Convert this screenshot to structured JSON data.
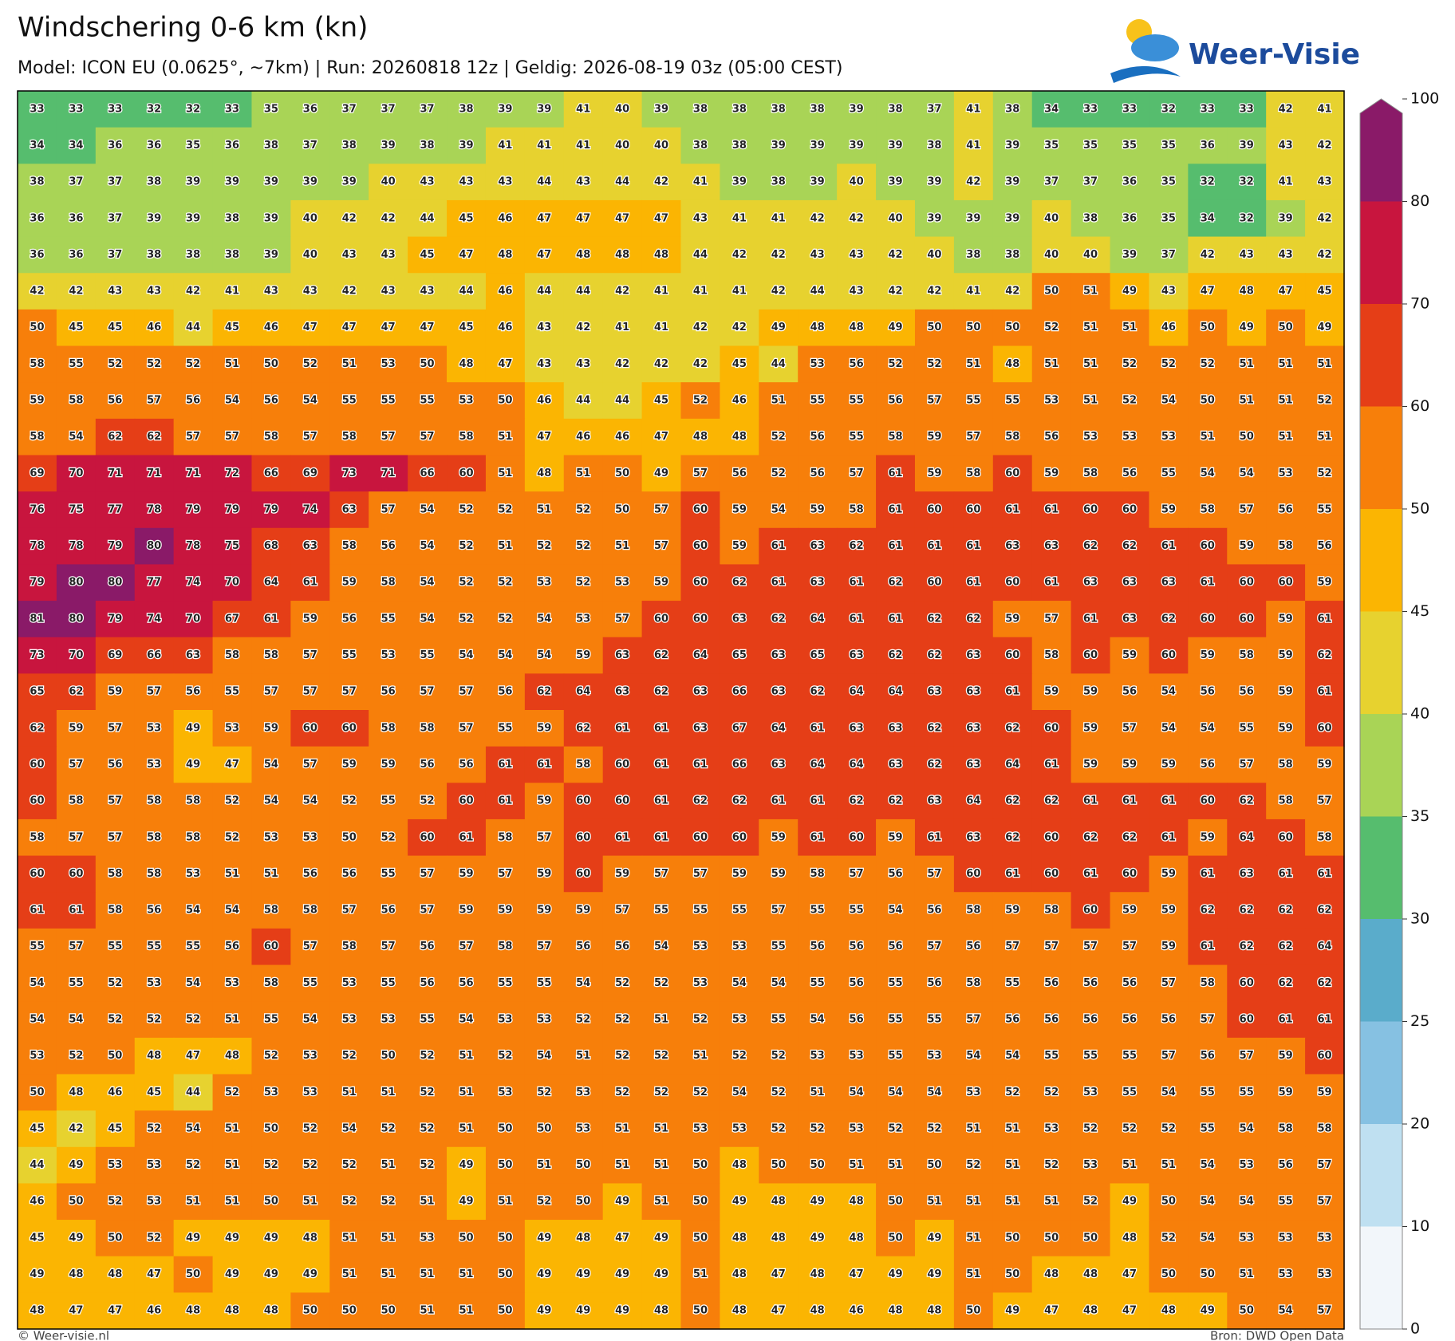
{
  "header": {
    "title": "Windschering 0-6 km (kn)",
    "subtitle": "Model: ICON EU (0.0625°, ~7km)  |  Run: 20260818 12z  |  Geldig: 2026-08-19 03z (05:00 CEST)"
  },
  "logo": {
    "text": "Weer-Visie"
  },
  "grid": {
    "rows": [
      [
        33,
        33,
        33,
        32,
        32,
        33,
        35,
        36,
        37,
        37,
        37,
        38,
        39,
        39,
        41,
        40,
        39,
        38,
        38,
        38,
        38,
        39,
        38,
        37,
        41,
        38,
        34,
        33,
        33,
        32,
        33,
        33,
        42,
        41
      ],
      [
        34,
        34,
        36,
        36,
        35,
        36,
        38,
        37,
        38,
        39,
        38,
        39,
        41,
        41,
        41,
        40,
        40,
        38,
        38,
        39,
        39,
        39,
        39,
        38,
        41,
        39,
        35,
        35,
        35,
        35,
        36,
        39,
        43,
        42
      ],
      [
        38,
        37,
        37,
        38,
        39,
        39,
        39,
        39,
        39,
        40,
        43,
        43,
        43,
        44,
        43,
        44,
        42,
        41,
        39,
        38,
        39,
        40,
        39,
        39,
        42,
        39,
        37,
        37,
        36,
        35,
        32,
        32,
        41,
        43
      ],
      [
        36,
        36,
        37,
        39,
        39,
        38,
        39,
        40,
        42,
        42,
        44,
        45,
        46,
        47,
        47,
        47,
        47,
        43,
        41,
        41,
        42,
        42,
        40,
        39,
        39,
        39,
        40,
        38,
        36,
        35,
        34,
        32,
        39,
        42
      ],
      [
        36,
        36,
        37,
        38,
        38,
        38,
        39,
        40,
        43,
        43,
        45,
        47,
        48,
        47,
        48,
        48,
        48,
        44,
        42,
        42,
        43,
        43,
        42,
        40,
        38,
        38,
        40,
        40,
        39,
        37,
        42,
        43,
        43,
        42
      ],
      [
        42,
        42,
        43,
        43,
        42,
        41,
        43,
        43,
        42,
        43,
        43,
        44,
        46,
        44,
        44,
        42,
        41,
        41,
        41,
        42,
        44,
        43,
        42,
        42,
        41,
        42,
        50,
        51,
        49,
        43,
        47,
        48,
        47,
        45
      ],
      [
        50,
        45,
        45,
        46,
        44,
        45,
        46,
        47,
        47,
        47,
        47,
        45,
        46,
        43,
        42,
        41,
        41,
        42,
        42,
        49,
        48,
        48,
        49,
        50,
        50,
        50,
        52,
        51,
        51,
        46,
        50,
        49,
        50,
        49
      ],
      [
        58,
        55,
        52,
        52,
        52,
        51,
        50,
        52,
        51,
        53,
        50,
        48,
        47,
        43,
        43,
        42,
        42,
        42,
        45,
        44,
        53,
        56,
        52,
        52,
        51,
        48,
        51,
        51,
        52,
        52,
        52,
        51,
        51,
        51
      ],
      [
        59,
        58,
        56,
        57,
        56,
        54,
        56,
        54,
        55,
        55,
        55,
        53,
        50,
        46,
        44,
        44,
        45,
        52,
        46,
        51,
        55,
        55,
        56,
        57,
        55,
        55,
        53,
        51,
        52,
        54,
        50,
        51,
        51,
        52
      ],
      [
        58,
        54,
        62,
        62,
        57,
        57,
        58,
        57,
        58,
        57,
        57,
        58,
        51,
        47,
        46,
        46,
        47,
        48,
        48,
        52,
        56,
        55,
        58,
        59,
        57,
        58,
        56,
        53,
        53,
        53,
        51,
        50,
        51,
        51
      ],
      [
        69,
        70,
        71,
        71,
        71,
        72,
        66,
        69,
        73,
        71,
        66,
        60,
        51,
        48,
        51,
        50,
        49,
        57,
        56,
        52,
        56,
        57,
        61,
        59,
        58,
        60,
        59,
        58,
        56,
        55,
        54,
        54,
        53,
        52
      ],
      [
        76,
        75,
        77,
        78,
        79,
        79,
        79,
        74,
        63,
        57,
        54,
        52,
        52,
        51,
        52,
        50,
        57,
        60,
        59,
        54,
        59,
        58,
        61,
        60,
        60,
        61,
        61,
        60,
        60,
        59,
        58,
        57,
        56,
        55
      ],
      [
        78,
        78,
        79,
        80,
        78,
        75,
        68,
        63,
        58,
        56,
        54,
        52,
        51,
        52,
        52,
        51,
        57,
        60,
        59,
        61,
        63,
        62,
        61,
        61,
        61,
        63,
        63,
        62,
        62,
        61,
        60,
        59,
        58,
        56
      ],
      [
        79,
        80,
        80,
        77,
        74,
        70,
        64,
        61,
        59,
        58,
        54,
        52,
        52,
        53,
        52,
        53,
        59,
        60,
        62,
        61,
        63,
        61,
        62,
        60,
        61,
        60,
        61,
        63,
        63,
        63,
        61,
        60,
        60,
        59
      ],
      [
        81,
        80,
        79,
        74,
        70,
        67,
        61,
        59,
        56,
        55,
        54,
        52,
        52,
        54,
        53,
        57,
        60,
        60,
        63,
        62,
        64,
        61,
        61,
        62,
        62,
        59,
        57,
        61,
        63,
        62,
        60,
        60,
        59,
        61
      ],
      [
        73,
        70,
        69,
        66,
        63,
        58,
        58,
        57,
        55,
        53,
        55,
        54,
        54,
        54,
        59,
        63,
        62,
        64,
        65,
        63,
        65,
        63,
        62,
        62,
        63,
        60,
        58,
        60,
        59,
        60,
        59,
        58,
        59,
        62
      ],
      [
        65,
        62,
        59,
        57,
        56,
        55,
        57,
        57,
        57,
        56,
        57,
        57,
        56,
        62,
        64,
        63,
        62,
        63,
        66,
        63,
        62,
        64,
        64,
        63,
        63,
        61,
        59,
        59,
        56,
        54,
        56,
        56,
        59,
        61
      ],
      [
        62,
        59,
        57,
        53,
        49,
        53,
        59,
        60,
        60,
        58,
        58,
        57,
        55,
        59,
        62,
        61,
        61,
        63,
        67,
        64,
        61,
        63,
        63,
        62,
        63,
        62,
        60,
        59,
        57,
        54,
        54,
        55,
        59,
        60
      ],
      [
        60,
        57,
        56,
        53,
        49,
        47,
        54,
        57,
        59,
        59,
        56,
        56,
        61,
        61,
        58,
        60,
        61,
        61,
        66,
        63,
        64,
        64,
        63,
        62,
        63,
        64,
        61,
        59,
        59,
        59,
        56,
        57,
        58,
        59
      ],
      [
        60,
        58,
        57,
        58,
        58,
        52,
        54,
        54,
        52,
        55,
        52,
        60,
        61,
        59,
        60,
        60,
        61,
        62,
        62,
        61,
        61,
        62,
        62,
        63,
        64,
        62,
        62,
        61,
        61,
        61,
        60,
        62,
        58,
        57
      ],
      [
        58,
        57,
        57,
        58,
        58,
        52,
        53,
        53,
        50,
        52,
        60,
        61,
        58,
        57,
        60,
        61,
        61,
        60,
        60,
        59,
        61,
        60,
        59,
        61,
        63,
        62,
        60,
        62,
        62,
        61,
        59,
        64,
        60,
        58
      ],
      [
        60,
        60,
        58,
        58,
        53,
        51,
        51,
        56,
        56,
        55,
        57,
        59,
        57,
        59,
        60,
        59,
        57,
        57,
        59,
        59,
        58,
        57,
        56,
        57,
        60,
        61,
        60,
        61,
        60,
        59,
        61,
        63,
        61,
        61
      ],
      [
        61,
        61,
        58,
        56,
        54,
        54,
        58,
        58,
        57,
        56,
        57,
        59,
        59,
        59,
        59,
        57,
        55,
        55,
        55,
        57,
        55,
        55,
        54,
        56,
        58,
        59,
        58,
        60,
        59,
        59,
        62,
        62,
        62,
        62
      ],
      [
        55,
        57,
        55,
        55,
        55,
        56,
        60,
        57,
        58,
        57,
        56,
        57,
        58,
        57,
        56,
        56,
        54,
        53,
        53,
        55,
        56,
        56,
        56,
        57,
        56,
        57,
        57,
        57,
        57,
        59,
        61,
        62,
        62,
        64
      ],
      [
        54,
        55,
        52,
        53,
        54,
        53,
        58,
        55,
        53,
        55,
        56,
        56,
        55,
        55,
        54,
        52,
        52,
        53,
        54,
        54,
        55,
        56,
        55,
        56,
        58,
        55,
        56,
        56,
        56,
        57,
        58,
        60,
        62,
        62
      ],
      [
        54,
        54,
        52,
        52,
        52,
        51,
        55,
        54,
        53,
        53,
        55,
        54,
        53,
        53,
        52,
        52,
        51,
        52,
        53,
        55,
        54,
        56,
        55,
        55,
        57,
        56,
        56,
        56,
        56,
        56,
        57,
        60,
        61,
        61
      ],
      [
        53,
        52,
        50,
        48,
        47,
        48,
        52,
        53,
        52,
        50,
        52,
        51,
        52,
        54,
        51,
        52,
        52,
        51,
        52,
        52,
        53,
        53,
        55,
        53,
        54,
        54,
        55,
        55,
        55,
        57,
        56,
        57,
        59,
        60
      ],
      [
        50,
        48,
        46,
        45,
        44,
        52,
        53,
        53,
        51,
        51,
        52,
        51,
        53,
        52,
        53,
        52,
        52,
        52,
        54,
        52,
        51,
        54,
        54,
        54,
        53,
        52,
        52,
        53,
        55,
        54,
        55,
        55,
        59,
        59
      ],
      [
        45,
        42,
        45,
        52,
        54,
        51,
        50,
        52,
        54,
        52,
        52,
        51,
        50,
        50,
        53,
        51,
        51,
        53,
        53,
        52,
        52,
        53,
        52,
        52,
        51,
        51,
        53,
        52,
        52,
        52,
        55,
        54,
        58,
        58
      ],
      [
        44,
        49,
        53,
        53,
        52,
        51,
        52,
        52,
        52,
        51,
        52,
        49,
        50,
        51,
        50,
        51,
        51,
        50,
        48,
        50,
        50,
        51,
        51,
        50,
        52,
        51,
        52,
        53,
        51,
        51,
        54,
        53,
        56,
        57
      ],
      [
        46,
        50,
        52,
        53,
        51,
        51,
        50,
        51,
        52,
        52,
        51,
        49,
        51,
        52,
        50,
        49,
        51,
        50,
        49,
        48,
        49,
        48,
        50,
        51,
        51,
        51,
        51,
        52,
        49,
        50,
        54,
        54,
        55,
        57
      ],
      [
        45,
        49,
        50,
        52,
        49,
        49,
        49,
        48,
        51,
        51,
        53,
        50,
        50,
        49,
        48,
        47,
        49,
        50,
        48,
        48,
        49,
        48,
        50,
        49,
        51,
        50,
        50,
        50,
        48,
        52,
        54,
        53,
        53,
        53
      ],
      [
        49,
        48,
        48,
        47,
        50,
        49,
        49,
        49,
        51,
        51,
        51,
        51,
        50,
        49,
        49,
        49,
        49,
        51,
        48,
        47,
        48,
        47,
        49,
        49,
        51,
        50,
        48,
        48,
        47,
        50,
        50,
        51,
        53,
        53
      ],
      [
        48,
        47,
        47,
        46,
        48,
        48,
        48,
        50,
        50,
        50,
        51,
        51,
        50,
        49,
        49,
        49,
        48,
        50,
        48,
        47,
        48,
        46,
        48,
        48,
        50,
        49,
        47,
        48,
        47,
        48,
        49,
        50,
        54,
        57
      ]
    ]
  },
  "colorbar": {
    "ticks": [
      0,
      10,
      20,
      25,
      30,
      35,
      40,
      45,
      50,
      60,
      70,
      80,
      100
    ],
    "colors": [
      "#f2f6fa",
      "#bfe0f1",
      "#86c1e2",
      "#5aaccb",
      "#56bd6e",
      "#a9d456",
      "#e7d22f",
      "#fbb502",
      "#f77f0a",
      "#e53e17",
      "#c8153e",
      "#8a1a68"
    ]
  },
  "footer": {
    "left": "© Weer-visie.nl",
    "right": "Bron: DWD Open Data"
  }
}
